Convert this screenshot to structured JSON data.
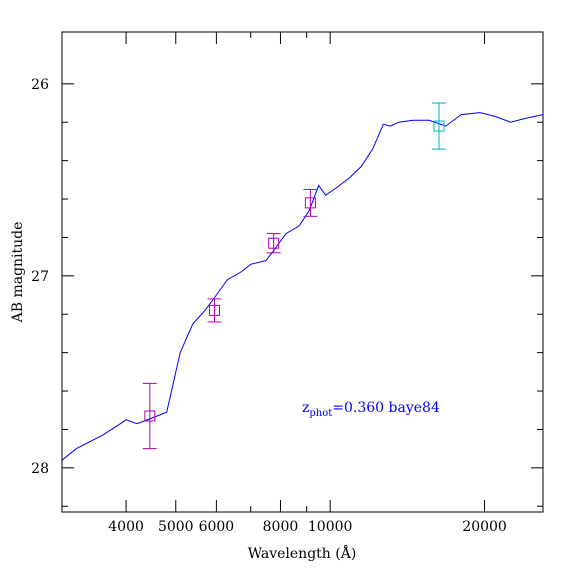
{
  "chart_data": {
    "type": "scatter",
    "xlabel": "Wavelength (Å)",
    "ylabel": "AB magnitude",
    "x_scale": "log",
    "xlim": [
      3000,
      26000
    ],
    "ylim": [
      28.23,
      25.73
    ],
    "x_ticks_labeled": [
      {
        "value": 4000,
        "label": "4000"
      },
      {
        "value": 5000,
        "label": "5000"
      },
      {
        "value": 6000,
        "label": "6000"
      },
      {
        "value": 8000,
        "label": "8000"
      },
      {
        "value": 10000,
        "label": "10000"
      },
      {
        "value": 20000,
        "label": "20000"
      }
    ],
    "x_ticks_minor": [
      3000,
      7000,
      9000
    ],
    "y_ticks_labeled": [
      {
        "value": 26,
        "label": "26"
      },
      {
        "value": 27,
        "label": "27"
      },
      {
        "value": 28,
        "label": "28"
      }
    ],
    "y_ticks_minor": [
      26.2,
      26.4,
      26.6,
      26.8,
      27.2,
      27.4,
      27.6,
      27.8,
      28.2
    ],
    "grid": false,
    "legend": "none",
    "series": [
      {
        "kind": "line",
        "color": "#0000ff",
        "points": [
          [
            3000,
            27.96
          ],
          [
            3200,
            27.9
          ],
          [
            3600,
            27.83
          ],
          [
            3850,
            27.78
          ],
          [
            4000,
            27.75
          ],
          [
            4200,
            27.77
          ],
          [
            4500,
            27.74
          ],
          [
            4800,
            27.71
          ],
          [
            5100,
            27.4
          ],
          [
            5400,
            27.25
          ],
          [
            5700,
            27.18
          ],
          [
            6000,
            27.1
          ],
          [
            6300,
            27.02
          ],
          [
            6700,
            26.98
          ],
          [
            7000,
            26.94
          ],
          [
            7500,
            26.92
          ],
          [
            7800,
            26.86
          ],
          [
            8200,
            26.78
          ],
          [
            8700,
            26.74
          ],
          [
            9100,
            26.66
          ],
          [
            9500,
            26.53
          ],
          [
            9800,
            26.58
          ],
          [
            10300,
            26.54
          ],
          [
            10900,
            26.49
          ],
          [
            11500,
            26.43
          ],
          [
            12100,
            26.34
          ],
          [
            12700,
            26.21
          ],
          [
            13100,
            26.22
          ],
          [
            13600,
            26.2
          ],
          [
            14500,
            26.19
          ],
          [
            15600,
            26.19
          ],
          [
            16800,
            26.22
          ],
          [
            18000,
            26.16
          ],
          [
            19600,
            26.15
          ],
          [
            21000,
            26.17
          ],
          [
            22500,
            26.2
          ],
          [
            24000,
            26.18
          ],
          [
            26000,
            26.16
          ]
        ]
      },
      {
        "kind": "errorbar",
        "color": "#b000b0",
        "points": [
          {
            "x": 4450,
            "y": 27.73,
            "err": 0.17
          },
          {
            "x": 5950,
            "y": 27.18,
            "err": 0.06
          },
          {
            "x": 7760,
            "y": 26.83,
            "err": 0.05
          },
          {
            "x": 9150,
            "y": 26.62,
            "err": 0.07
          }
        ]
      },
      {
        "kind": "errorbar",
        "color": "#00b0c8",
        "points": [
          {
            "x": 16300,
            "y": 26.22,
            "err": 0.12
          }
        ]
      }
    ],
    "annotations": [
      {
        "text_main": "z",
        "text_sub": "phot",
        "text_rest": "=0.360  baye84",
        "color": "#0000ff"
      }
    ]
  }
}
